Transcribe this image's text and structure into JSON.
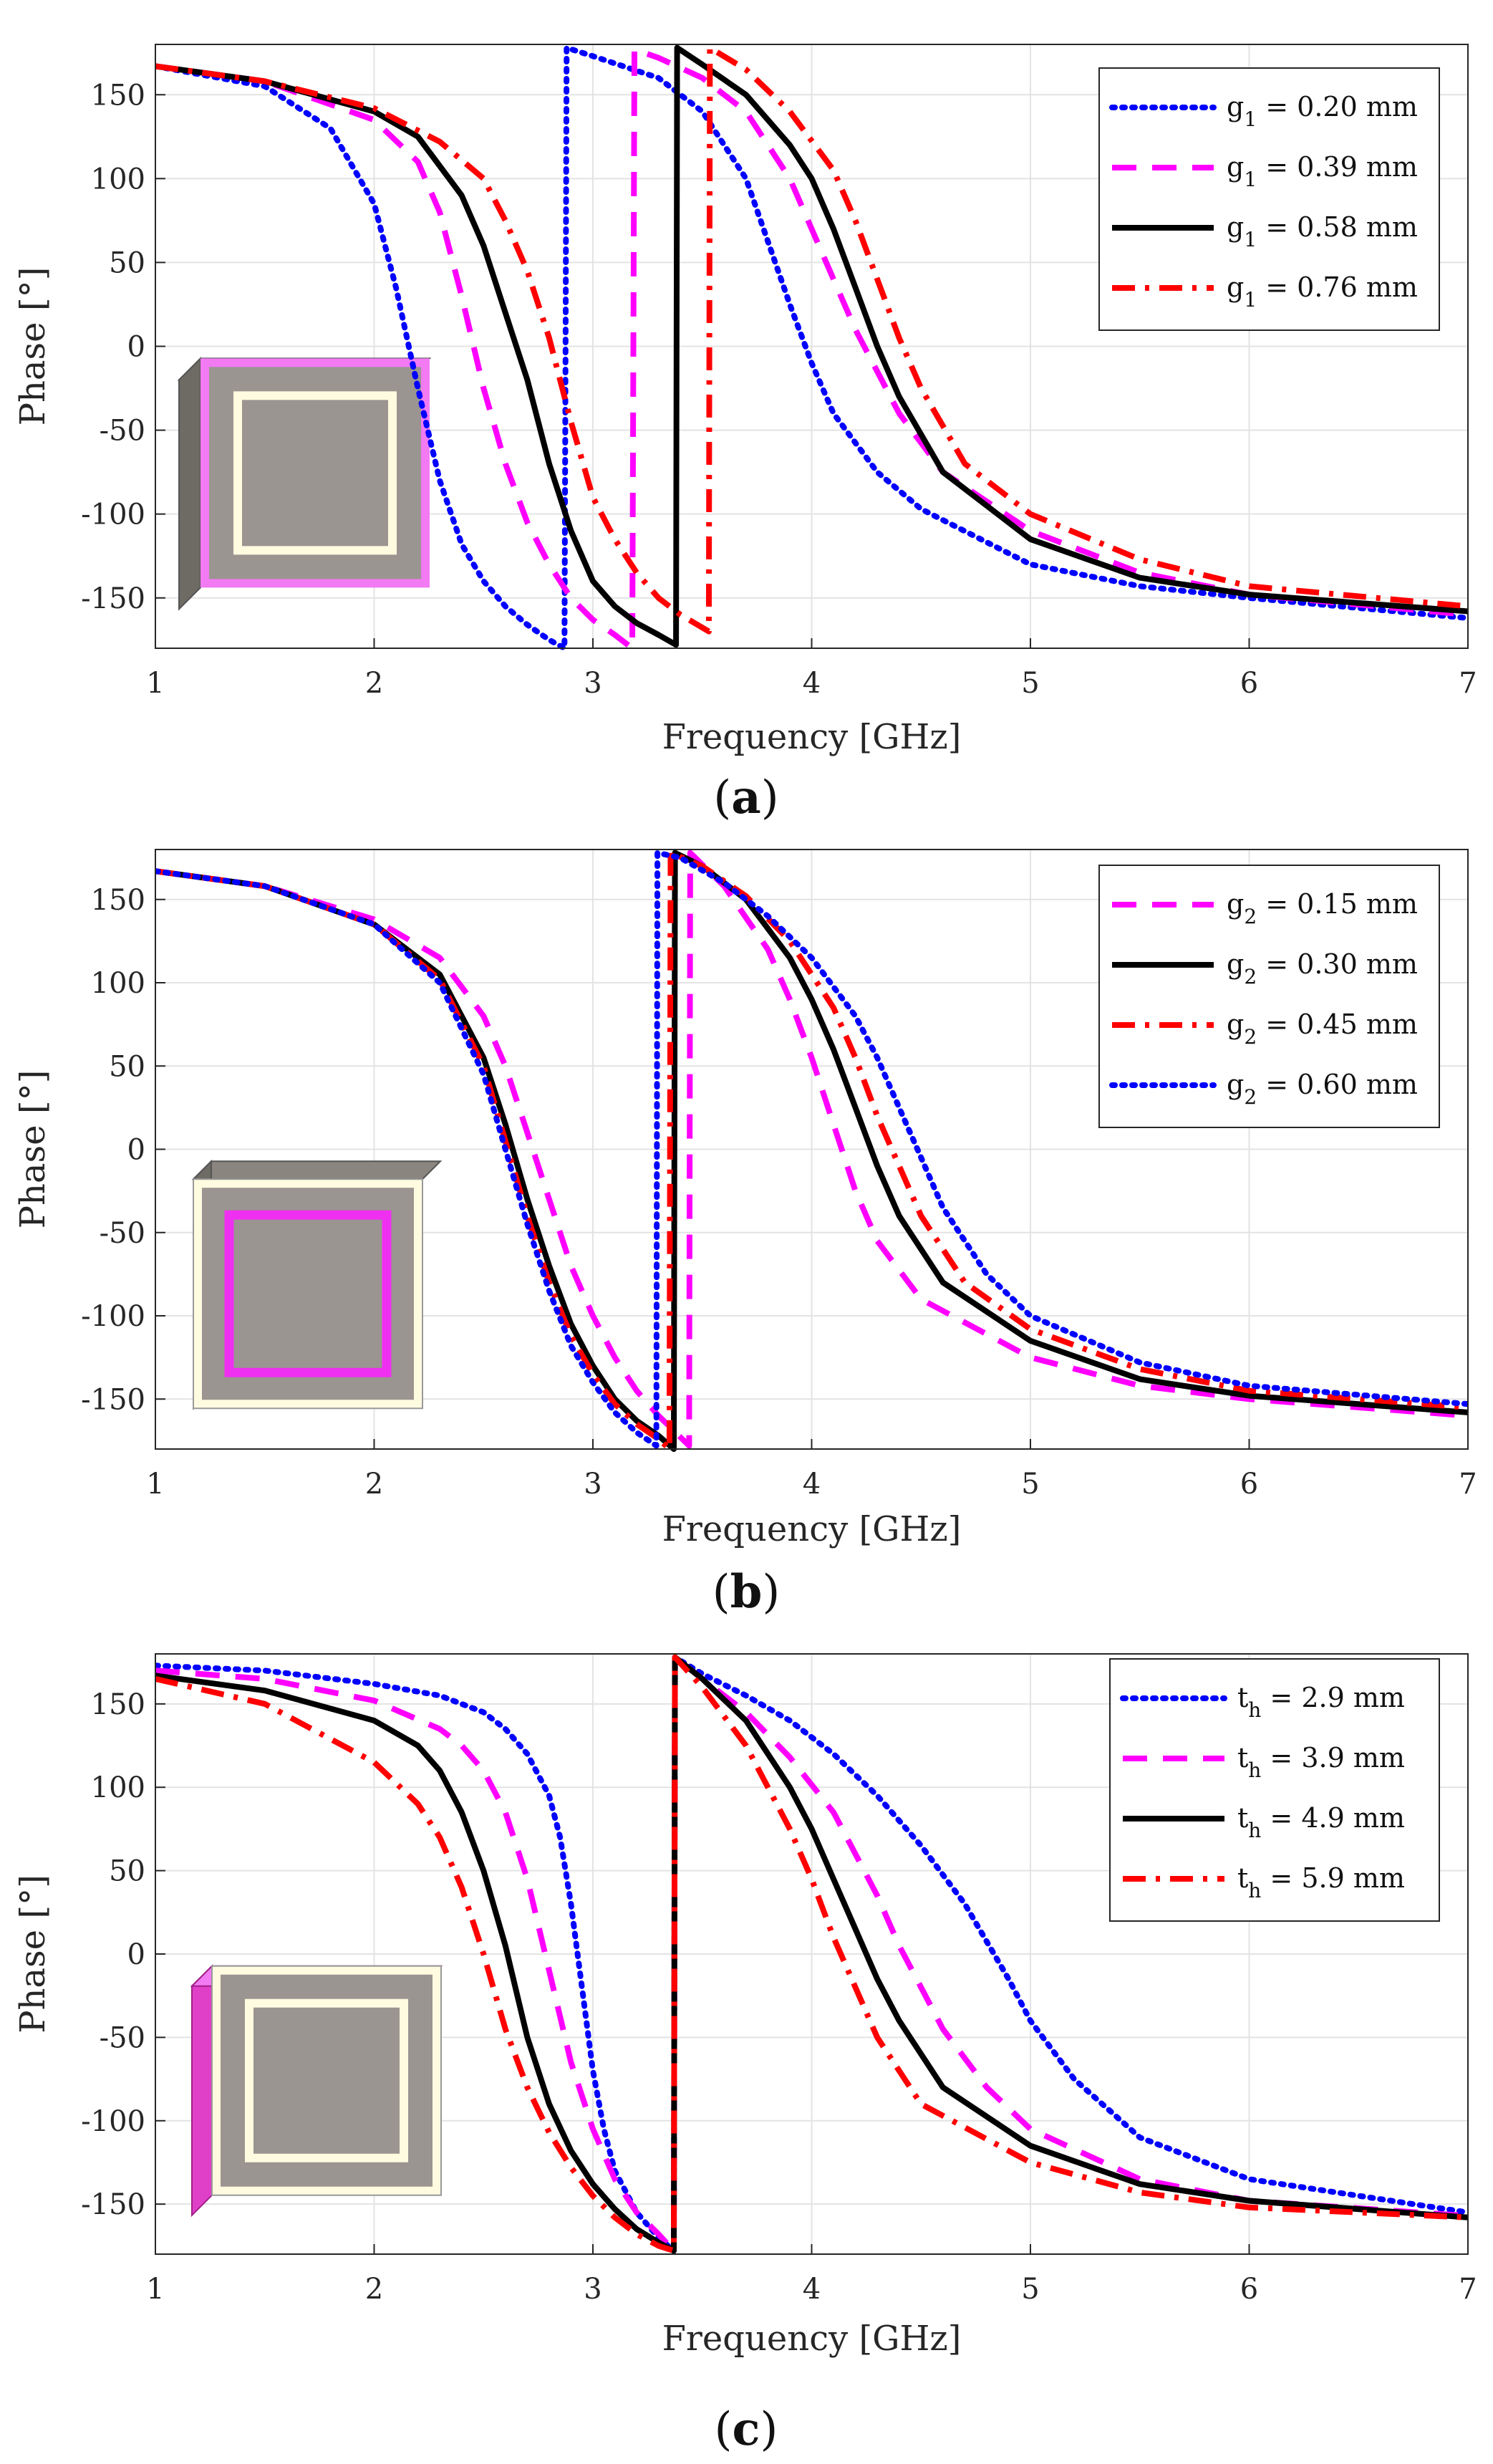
{
  "chart_data": [
    {
      "panel": "a",
      "caption": "(a)",
      "type": "line",
      "xlabel": "Frequency [GHz]",
      "ylabel": "Phase [°]",
      "xlim": [
        1,
        7
      ],
      "ylim": [
        -180,
        180
      ],
      "xticks": [
        1,
        2,
        3,
        4,
        5,
        6,
        7
      ],
      "yticks": [
        150,
        100,
        50,
        0,
        -50,
        -100,
        -150
      ],
      "grid": true,
      "legend_position": "top-right",
      "inset": "unit cell with magenta highlighted outer gap g1",
      "series": [
        {
          "symbol": "g",
          "sub": "1",
          "value": " = 0.20 mm",
          "color": "#0000ff",
          "dash": "dotted",
          "x": [
            1.0,
            1.5,
            1.8,
            2.0,
            2.1,
            2.2,
            2.3,
            2.4,
            2.5,
            2.6,
            2.7,
            2.8,
            2.87,
            2.88,
            3.0,
            3.3,
            3.5,
            3.7,
            3.9,
            4.0,
            4.1,
            4.3,
            4.5,
            5.0,
            5.5,
            6.0,
            7.0
          ],
          "y": [
            167,
            155,
            130,
            85,
            35,
            -25,
            -80,
            -118,
            -140,
            -155,
            -166,
            -175,
            -180,
            178,
            173,
            160,
            140,
            100,
            25,
            -10,
            -40,
            -75,
            -97,
            -130,
            -143,
            -150,
            -162
          ]
        },
        {
          "symbol": "g",
          "sub": "1",
          "value": " = 0.39 mm",
          "color": "#ff00ff",
          "dash": "dashed",
          "x": [
            1.0,
            1.5,
            2.0,
            2.2,
            2.3,
            2.4,
            2.5,
            2.6,
            2.7,
            2.8,
            2.9,
            3.0,
            3.1,
            3.18,
            3.19,
            3.3,
            3.5,
            3.7,
            3.9,
            4.0,
            4.1,
            4.2,
            4.4,
            4.6,
            5.0,
            5.5,
            6.0,
            7.0
          ],
          "y": [
            167,
            158,
            135,
            110,
            80,
            30,
            -25,
            -70,
            -105,
            -130,
            -150,
            -163,
            -172,
            -180,
            177,
            172,
            160,
            140,
            100,
            70,
            40,
            10,
            -40,
            -75,
            -110,
            -135,
            -148,
            -160
          ]
        },
        {
          "symbol": "g",
          "sub": "1",
          "value": " = 0.58 mm",
          "color": "#000000",
          "dash": "solid",
          "x": [
            1.0,
            1.5,
            2.0,
            2.2,
            2.4,
            2.5,
            2.6,
            2.7,
            2.8,
            2.9,
            3.0,
            3.1,
            3.2,
            3.3,
            3.38,
            3.385,
            3.5,
            3.7,
            3.9,
            4.0,
            4.1,
            4.2,
            4.3,
            4.4,
            4.6,
            5.0,
            5.5,
            6.0,
            7.0
          ],
          "y": [
            167,
            158,
            140,
            125,
            90,
            60,
            20,
            -20,
            -70,
            -110,
            -140,
            -155,
            -165,
            -172,
            -178,
            178,
            168,
            150,
            120,
            100,
            70,
            35,
            0,
            -30,
            -75,
            -115,
            -138,
            -148,
            -158
          ]
        },
        {
          "symbol": "g",
          "sub": "1",
          "value": " = 0.76 mm",
          "color": "#ff0000",
          "dash": "dashdot",
          "x": [
            1.0,
            1.5,
            2.0,
            2.3,
            2.5,
            2.6,
            2.7,
            2.8,
            2.9,
            3.0,
            3.1,
            3.2,
            3.3,
            3.4,
            3.53,
            3.535,
            3.7,
            3.9,
            4.1,
            4.2,
            4.3,
            4.4,
            4.5,
            4.7,
            5.0,
            5.5,
            6.0,
            7.0
          ],
          "y": [
            167,
            158,
            142,
            122,
            100,
            75,
            45,
            5,
            -45,
            -90,
            -115,
            -135,
            -150,
            -160,
            -170,
            178,
            165,
            140,
            105,
            75,
            40,
            5,
            -25,
            -70,
            -100,
            -127,
            -143,
            -155
          ]
        }
      ]
    },
    {
      "panel": "b",
      "caption": "(b)",
      "type": "line",
      "xlabel": "Frequency [GHz]",
      "ylabel": "Phase [°]",
      "xlim": [
        1,
        7
      ],
      "ylim": [
        -180,
        180
      ],
      "xticks": [
        1,
        2,
        3,
        4,
        5,
        6,
        7
      ],
      "yticks": [
        150,
        100,
        50,
        0,
        -50,
        -100,
        -150
      ],
      "grid": true,
      "legend_position": "top-right",
      "inset": "unit cell with magenta highlighted inner gap g2",
      "series": [
        {
          "symbol": "g",
          "sub": "2",
          "value": " = 0.15 mm",
          "color": "#ff00ff",
          "dash": "dashed",
          "x": [
            1.0,
            1.5,
            2.0,
            2.3,
            2.5,
            2.6,
            2.7,
            2.8,
            2.9,
            3.0,
            3.1,
            3.2,
            3.3,
            3.44,
            3.445,
            3.6,
            3.8,
            3.9,
            4.0,
            4.1,
            4.2,
            4.3,
            4.5,
            5.0,
            5.5,
            6.0,
            7.0
          ],
          "y": [
            167,
            158,
            138,
            115,
            80,
            50,
            10,
            -30,
            -70,
            -100,
            -125,
            -145,
            -160,
            -178,
            178,
            158,
            120,
            90,
            55,
            15,
            -25,
            -55,
            -90,
            -125,
            -142,
            -150,
            -160
          ]
        },
        {
          "symbol": "g",
          "sub": "2",
          "value": " = 0.30 mm",
          "color": "#000000",
          "dash": "solid",
          "x": [
            1.0,
            1.5,
            2.0,
            2.3,
            2.5,
            2.6,
            2.7,
            2.8,
            2.9,
            3.0,
            3.1,
            3.2,
            3.3,
            3.37,
            3.375,
            3.5,
            3.7,
            3.9,
            4.0,
            4.1,
            4.2,
            4.3,
            4.4,
            4.6,
            5.0,
            5.5,
            6.0,
            7.0
          ],
          "y": [
            167,
            158,
            135,
            105,
            55,
            15,
            -30,
            -70,
            -105,
            -130,
            -150,
            -163,
            -172,
            -180,
            178,
            170,
            150,
            115,
            90,
            60,
            25,
            -10,
            -40,
            -80,
            -115,
            -138,
            -148,
            -158
          ]
        },
        {
          "symbol": "g",
          "sub": "2",
          "value": " = 0.45 mm",
          "color": "#ff0000",
          "dash": "dashdot",
          "x": [
            1.0,
            1.5,
            2.0,
            2.3,
            2.5,
            2.6,
            2.7,
            2.8,
            2.9,
            3.0,
            3.1,
            3.2,
            3.3,
            3.35,
            3.355,
            3.5,
            3.7,
            3.9,
            4.1,
            4.2,
            4.3,
            4.4,
            4.5,
            4.7,
            5.0,
            5.5,
            6.0,
            7.0
          ],
          "y": [
            167,
            158,
            135,
            102,
            50,
            5,
            -40,
            -80,
            -112,
            -135,
            -153,
            -165,
            -174,
            -180,
            178,
            170,
            152,
            125,
            85,
            55,
            20,
            -10,
            -40,
            -80,
            -108,
            -132,
            -145,
            -155
          ]
        },
        {
          "symbol": "g",
          "sub": "2",
          "value": " = 0.60 mm",
          "color": "#0000ff",
          "dash": "dotted",
          "x": [
            1.0,
            1.5,
            2.0,
            2.3,
            2.5,
            2.6,
            2.7,
            2.8,
            2.9,
            3.0,
            3.1,
            3.2,
            3.29,
            3.295,
            3.4,
            3.6,
            3.8,
            4.0,
            4.2,
            4.3,
            4.4,
            4.5,
            4.6,
            4.8,
            5.0,
            5.5,
            6.0,
            7.0
          ],
          "y": [
            167,
            158,
            135,
            100,
            45,
            0,
            -45,
            -85,
            -118,
            -140,
            -158,
            -170,
            -178,
            178,
            175,
            160,
            140,
            115,
            80,
            55,
            25,
            -5,
            -35,
            -75,
            -100,
            -128,
            -142,
            -153
          ]
        }
      ]
    },
    {
      "panel": "c",
      "caption": "(c)",
      "type": "line",
      "xlabel": "Frequency [GHz]",
      "ylabel": "Phase [°]",
      "xlim": [
        1,
        7
      ],
      "ylim": [
        -180,
        180
      ],
      "xticks": [
        1,
        2,
        3,
        4,
        5,
        6,
        7
      ],
      "yticks": [
        150,
        100,
        50,
        0,
        -50,
        -100,
        -150
      ],
      "grid": true,
      "legend_position": "top-right",
      "inset": "unit cell with magenta highlighted substrate thickness th",
      "series": [
        {
          "symbol": "t",
          "sub": "h",
          "value": " = 2.9 mm",
          "color": "#0000ff",
          "dash": "dotted",
          "x": [
            1.0,
            1.5,
            2.0,
            2.3,
            2.5,
            2.6,
            2.7,
            2.8,
            2.85,
            2.9,
            2.95,
            3.0,
            3.05,
            3.1,
            3.2,
            3.3,
            3.37,
            3.375,
            3.5,
            3.7,
            3.9,
            4.1,
            4.3,
            4.5,
            4.7,
            4.9,
            5.0,
            5.2,
            5.5,
            6.0,
            7.0
          ],
          "y": [
            173,
            170,
            162,
            155,
            145,
            135,
            120,
            95,
            70,
            30,
            -20,
            -70,
            -105,
            -130,
            -155,
            -170,
            -178,
            178,
            168,
            155,
            140,
            120,
            95,
            65,
            30,
            -15,
            -40,
            -75,
            -110,
            -135,
            -155
          ]
        },
        {
          "symbol": "t",
          "sub": "h",
          "value": " = 3.9 mm",
          "color": "#ff00ff",
          "dash": "dashed",
          "x": [
            1.0,
            1.5,
            2.0,
            2.3,
            2.4,
            2.5,
            2.6,
            2.7,
            2.8,
            2.9,
            3.0,
            3.1,
            3.2,
            3.3,
            3.37,
            3.375,
            3.5,
            3.7,
            3.9,
            4.1,
            4.2,
            4.3,
            4.4,
            4.5,
            4.6,
            4.8,
            5.0,
            5.5,
            6.0,
            7.0
          ],
          "y": [
            170,
            165,
            152,
            135,
            125,
            110,
            85,
            45,
            -10,
            -65,
            -105,
            -135,
            -155,
            -168,
            -178,
            178,
            165,
            145,
            118,
            85,
            60,
            35,
            5,
            -20,
            -45,
            -80,
            -105,
            -135,
            -148,
            -157
          ]
        },
        {
          "symbol": "t",
          "sub": "h",
          "value": " = 4.9 mm",
          "color": "#000000",
          "dash": "solid",
          "x": [
            1.0,
            1.5,
            2.0,
            2.2,
            2.3,
            2.4,
            2.5,
            2.6,
            2.7,
            2.8,
            2.9,
            3.0,
            3.1,
            3.2,
            3.3,
            3.37,
            3.375,
            3.5,
            3.7,
            3.9,
            4.0,
            4.1,
            4.2,
            4.3,
            4.4,
            4.6,
            5.0,
            5.5,
            6.0,
            7.0
          ],
          "y": [
            167,
            158,
            140,
            125,
            110,
            85,
            50,
            5,
            -50,
            -90,
            -118,
            -138,
            -153,
            -165,
            -173,
            -178,
            178,
            165,
            140,
            100,
            75,
            45,
            15,
            -15,
            -40,
            -80,
            -115,
            -138,
            -148,
            -158
          ]
        },
        {
          "symbol": "t",
          "sub": "h",
          "value": " = 5.9 mm",
          "color": "#ff0000",
          "dash": "dashdot",
          "x": [
            1.0,
            1.5,
            2.0,
            2.2,
            2.3,
            2.4,
            2.5,
            2.6,
            2.7,
            2.8,
            2.9,
            3.0,
            3.1,
            3.2,
            3.3,
            3.37,
            3.375,
            3.5,
            3.7,
            3.9,
            4.0,
            4.1,
            4.2,
            4.3,
            4.5,
            5.0,
            5.5,
            6.0,
            7.0
          ],
          "y": [
            165,
            150,
            115,
            90,
            70,
            40,
            0,
            -45,
            -80,
            -107,
            -128,
            -145,
            -158,
            -168,
            -175,
            -178,
            178,
            160,
            125,
            75,
            45,
            10,
            -20,
            -50,
            -90,
            -125,
            -143,
            -152,
            -158
          ]
        }
      ]
    }
  ]
}
